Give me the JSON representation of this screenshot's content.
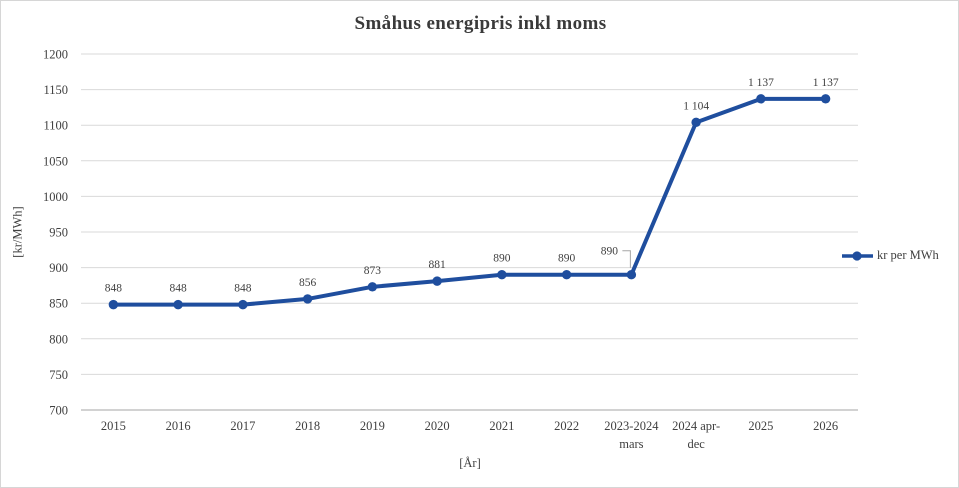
{
  "window": {
    "background": "#ffffff",
    "border_color": "#d6d6d6"
  },
  "chart_data": {
    "type": "line",
    "title": "Småhus energipris inkl moms",
    "xlabel": "[År]",
    "ylabel": "[kr/MWh]",
    "categories": [
      "2015",
      "2016",
      "2017",
      "2018",
      "2019",
      "2020",
      "2021",
      "2022",
      "2023-2024 mars",
      "2024 apr-dec",
      "2025",
      "2026"
    ],
    "category_tick_lines": [
      [
        "2015"
      ],
      [
        "2016"
      ],
      [
        "2017"
      ],
      [
        "2018"
      ],
      [
        "2019"
      ],
      [
        "2020"
      ],
      [
        "2021"
      ],
      [
        "2022"
      ],
      [
        "2023-2024",
        "mars"
      ],
      [
        "2024 apr-",
        "dec"
      ],
      [
        "2025"
      ],
      [
        "2026"
      ]
    ],
    "series": [
      {
        "name": "kr per MWh",
        "values": [
          848,
          848,
          848,
          856,
          873,
          881,
          890,
          890,
          890,
          1104,
          1137,
          1137
        ]
      }
    ],
    "data_labels": [
      "848",
      "848",
      "848",
      "856",
      "873",
      "881",
      "890",
      "890",
      "890",
      "1 104",
      "1 137",
      "1 137"
    ],
    "callout_label_index": 8,
    "ylim": [
      700,
      1200
    ],
    "yticks": [
      700,
      750,
      800,
      850,
      900,
      950,
      1000,
      1050,
      1100,
      1150,
      1200
    ],
    "grid": true,
    "legend_position": "right",
    "colors": {
      "line": "#1f4e9e",
      "grid": "#d9d9d9",
      "axis": "#a6a6a6",
      "text": "#404040",
      "leader": "#a6a6a6"
    }
  },
  "legend": {
    "label": "kr per MWh"
  }
}
